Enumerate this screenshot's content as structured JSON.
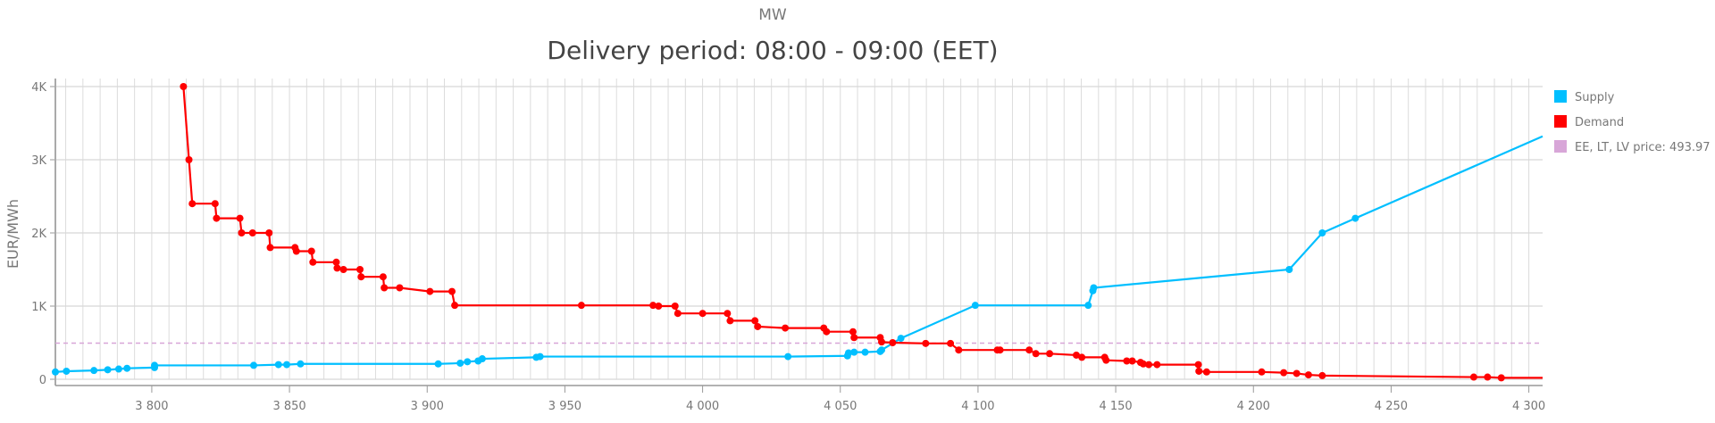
{
  "chart_data": {
    "type": "line",
    "subtitle": "MW",
    "title": "Delivery period: 08:00 - 09:00 (EET)",
    "xlabel": "",
    "ylabel": "EUR/MWh",
    "xlim": [
      3765,
      4305
    ],
    "ylim": [
      0,
      4000
    ],
    "x_ticks": [
      3800,
      3850,
      3900,
      3950,
      4000,
      4050,
      4100,
      4150,
      4200,
      4250,
      4300
    ],
    "x_tick_labels": [
      "3 800",
      "3 850",
      "3 900",
      "3 950",
      "4 000",
      "4 050",
      "4 100",
      "4 150",
      "4 200",
      "4 250",
      "4 300"
    ],
    "y_ticks": [
      0,
      1000,
      2000,
      3000,
      4000
    ],
    "y_tick_labels": [
      "0",
      "1K",
      "2K",
      "3K",
      "4K"
    ],
    "grid": true,
    "legend_position": "right",
    "series": [
      {
        "name": "Supply",
        "color": "#00BFFF",
        "points": [
          [
            3765,
            100
          ],
          [
            3769,
            110
          ],
          [
            3779,
            120
          ],
          [
            3784,
            130
          ],
          [
            3788,
            140
          ],
          [
            3791,
            150
          ],
          [
            3801,
            160
          ],
          [
            3801,
            190
          ],
          [
            3837,
            190
          ],
          [
            3846,
            200
          ],
          [
            3849,
            200
          ],
          [
            3854,
            210
          ],
          [
            3904,
            210
          ],
          [
            3912,
            220
          ],
          [
            3914.6,
            240
          ],
          [
            3918.5,
            250
          ],
          [
            3920,
            280
          ],
          [
            3939.6,
            300
          ],
          [
            3941,
            310
          ],
          [
            4031,
            310
          ],
          [
            4052.6,
            320
          ],
          [
            4053,
            360
          ],
          [
            4055,
            370
          ],
          [
            4059,
            370
          ],
          [
            4064.5,
            380
          ],
          [
            4065,
            400
          ],
          [
            4072,
            560
          ],
          [
            4099,
            1010
          ],
          [
            4140,
            1010
          ],
          [
            4141.7,
            1210
          ],
          [
            4142,
            1250
          ],
          [
            4213,
            1500
          ],
          [
            4225,
            2000
          ],
          [
            4237,
            2200
          ],
          [
            4305,
            3320,
            "nomarker"
          ]
        ]
      },
      {
        "name": "Demand",
        "color": "#FF0000",
        "points": [
          [
            3811.5,
            4000
          ],
          [
            3813.5,
            3000
          ],
          [
            3814.7,
            2400
          ],
          [
            3823,
            2400
          ],
          [
            3823.5,
            2200
          ],
          [
            3832,
            2200
          ],
          [
            3832.6,
            2000
          ],
          [
            3836.6,
            2000
          ],
          [
            3842.6,
            2000
          ],
          [
            3843,
            1800
          ],
          [
            3852,
            1800
          ],
          [
            3852.5,
            1750
          ],
          [
            3858,
            1750
          ],
          [
            3858.5,
            1600
          ],
          [
            3867,
            1600
          ],
          [
            3867.3,
            1520
          ],
          [
            3869.6,
            1500
          ],
          [
            3875.6,
            1500
          ],
          [
            3876,
            1400
          ],
          [
            3884,
            1400
          ],
          [
            3884.4,
            1250
          ],
          [
            3890,
            1250
          ],
          [
            3901,
            1200
          ],
          [
            3909,
            1200
          ],
          [
            3910,
            1010
          ],
          [
            3956,
            1010
          ],
          [
            3982,
            1010
          ],
          [
            3984,
            1000
          ],
          [
            3990,
            1000
          ],
          [
            3991,
            900
          ],
          [
            4000,
            900
          ],
          [
            4009,
            900
          ],
          [
            4010,
            800
          ],
          [
            4019,
            800
          ],
          [
            4020,
            720
          ],
          [
            4030,
            700
          ],
          [
            4044,
            700
          ],
          [
            4045,
            650
          ],
          [
            4054.6,
            650
          ],
          [
            4055,
            570
          ],
          [
            4064.5,
            570
          ],
          [
            4065,
            510
          ],
          [
            4069,
            500
          ],
          [
            4081,
            490
          ],
          [
            4090,
            490
          ],
          [
            4093,
            400
          ],
          [
            4107,
            400
          ],
          [
            4108,
            400
          ],
          [
            4118.6,
            400
          ],
          [
            4121,
            350
          ],
          [
            4126,
            350
          ],
          [
            4135.7,
            330
          ],
          [
            4137.7,
            300
          ],
          [
            4146,
            300
          ],
          [
            4146.5,
            260
          ],
          [
            4154,
            250
          ],
          [
            4156,
            250
          ],
          [
            4159,
            230
          ],
          [
            4160,
            210
          ],
          [
            4162,
            200
          ],
          [
            4165,
            200
          ],
          [
            4180,
            200
          ],
          [
            4180.2,
            110
          ],
          [
            4183,
            100
          ],
          [
            4203,
            100
          ],
          [
            4211,
            90
          ],
          [
            4215.7,
            80
          ],
          [
            4220,
            60
          ],
          [
            4225,
            50
          ],
          [
            4280,
            30
          ],
          [
            4285,
            30
          ],
          [
            4290,
            20
          ],
          [
            4305,
            20,
            "nomarker"
          ]
        ]
      }
    ],
    "price_line": {
      "label": "EE, LT, LV price: 493.97",
      "value": 493.97,
      "color": "#D8A6D8"
    }
  }
}
